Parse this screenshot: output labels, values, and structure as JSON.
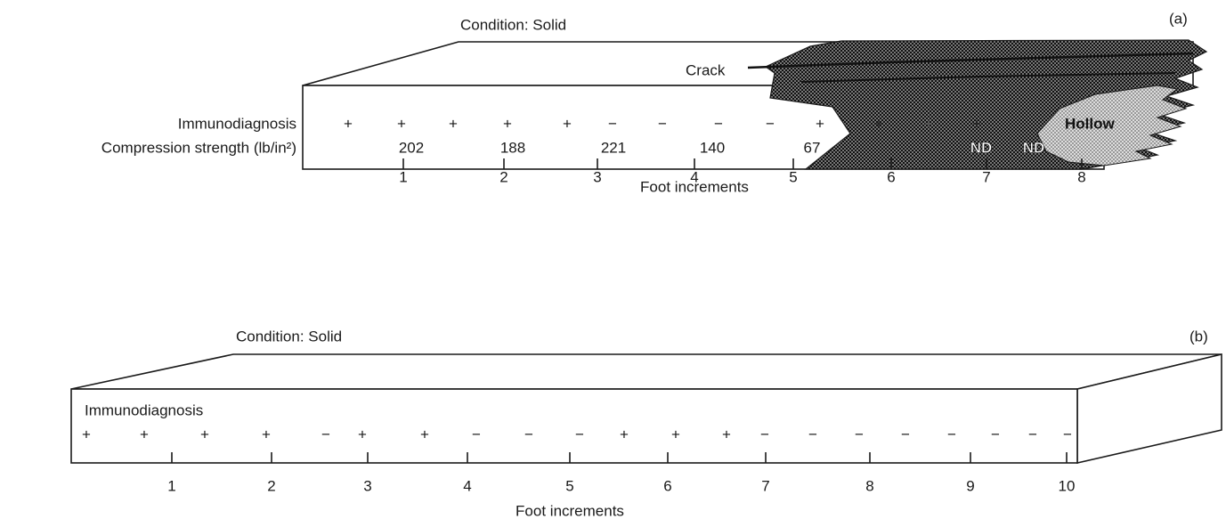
{
  "panels": [
    {
      "label": "(a)",
      "condition": "Condition: Solid",
      "annotations": {
        "crack": "Crack",
        "hollow": "Hollow"
      },
      "row_labels": [
        "Immunodiagnosis",
        "Compression strength (lb/in²)"
      ],
      "immunodiagnosis": [
        "+",
        "+",
        "+",
        "+",
        "+",
        "−",
        "−",
        "−",
        "−",
        "+",
        "+",
        "+",
        "+"
      ],
      "compression_strength": [
        "202",
        "188",
        "221",
        "140",
        "67",
        "ND",
        "ND"
      ],
      "ticks": [
        "1",
        "2",
        "3",
        "4",
        "5",
        "6",
        "7",
        "8"
      ],
      "axis_label": "Foot increments"
    },
    {
      "label": "(b)",
      "condition": "Condition: Solid",
      "row_labels": [
        "Immunodiagnosis"
      ],
      "immunodiagnosis": [
        "+",
        "+",
        "+",
        "+",
        "−",
        "+",
        "+",
        "−",
        "−",
        "−",
        "+",
        "+",
        "+",
        "−",
        "−",
        "−",
        "−",
        "−",
        "−",
        "−",
        "−"
      ],
      "ticks": [
        "1",
        "2",
        "3",
        "4",
        "5",
        "6",
        "7",
        "8",
        "9",
        "10"
      ],
      "axis_label": "Foot increments"
    }
  ]
}
